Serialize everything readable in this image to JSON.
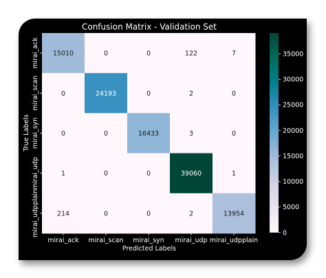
{
  "chart_data": {
    "type": "heatmap",
    "title": "Confusion Matrix - Validation Set",
    "xlabel": "Predicted Labels",
    "ylabel": "True Labels",
    "x_categories": [
      "mirai_ack",
      "mirai_scan",
      "mirai_syn",
      "mirai_udp",
      "mirai_udpplain"
    ],
    "y_categories": [
      "mirai_ack",
      "mirai_scan",
      "mirai_syn",
      "mirai_udp",
      "mirai_udpplain"
    ],
    "values": [
      [
        15010,
        0,
        0,
        122,
        7
      ],
      [
        0,
        24193,
        0,
        2,
        0
      ],
      [
        0,
        0,
        16433,
        3,
        0
      ],
      [
        1,
        0,
        0,
        39060,
        1
      ],
      [
        214,
        0,
        0,
        2,
        13954
      ]
    ],
    "colorbar": {
      "min": 0,
      "max": 39060,
      "colormap": "PuBuGn",
      "ticks": [
        0,
        5000,
        10000,
        15000,
        20000,
        25000,
        30000,
        35000
      ]
    },
    "grid": false,
    "legend": "colorbar-right"
  }
}
